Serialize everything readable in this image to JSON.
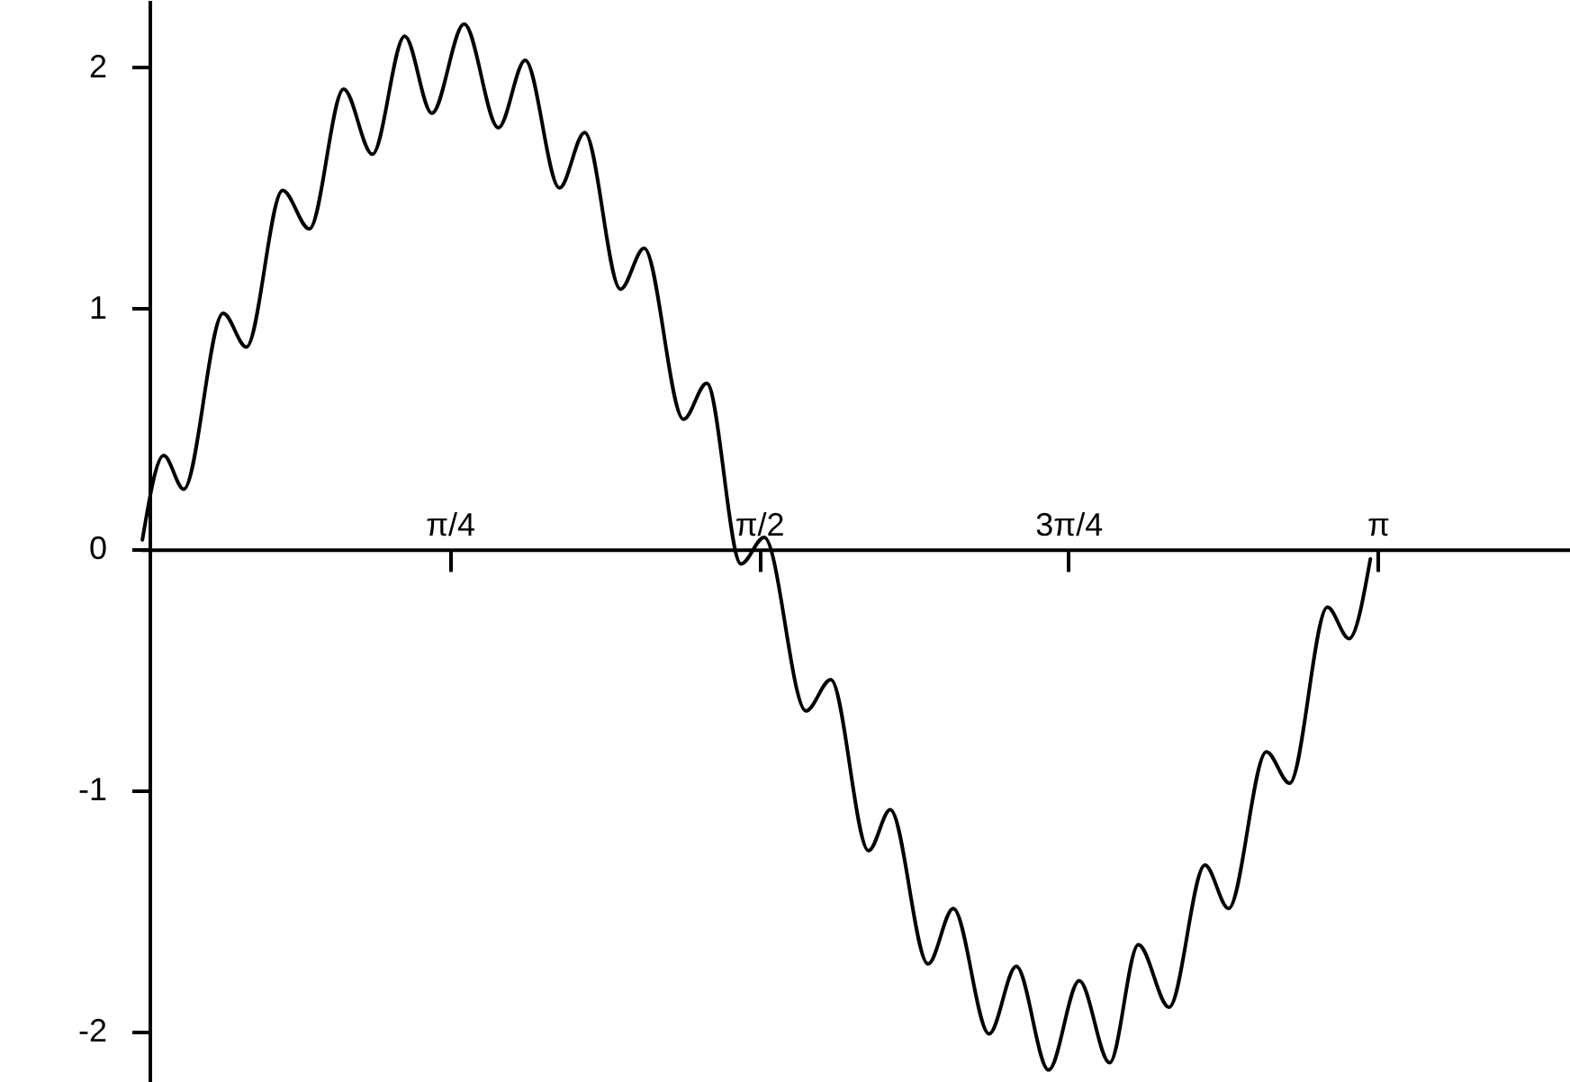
{
  "chart_data": {
    "type": "line",
    "xlim": [
      0,
      3.63
    ],
    "ylim": [
      -2.21,
      2.28
    ],
    "xticks": [
      {
        "value": 0.7854,
        "label": "π/4"
      },
      {
        "value": 1.5708,
        "label": "π/2"
      },
      {
        "value": 2.3562,
        "label": "3π/4"
      },
      {
        "value": 3.1416,
        "label": "π"
      }
    ],
    "yticks": [
      -2,
      -1,
      0,
      1,
      2
    ],
    "grid": false,
    "marker": "none",
    "line_style": "solid",
    "series": [
      {
        "color": "#000000",
        "x": [
          0.005,
          0.059,
          0.11,
          0.21,
          0.269,
          0.361,
          0.429,
          0.516,
          0.589,
          0.671,
          0.74,
          0.822,
          0.909,
          0.977,
          1.064,
          1.128,
          1.219,
          1.279,
          1.379,
          1.438,
          1.525,
          1.584,
          1.69,
          1.753,
          1.849,
          1.904,
          2.0,
          2.064,
          2.155,
          2.224,
          2.306,
          2.384,
          2.461,
          2.534,
          2.612,
          2.703,
          2.763,
          2.859,
          2.918,
          3.014,
          3.069,
          3.123
        ],
        "values": [
          0.04,
          0.39,
          0.25,
          0.98,
          0.84,
          1.49,
          1.33,
          1.91,
          1.64,
          2.13,
          1.81,
          2.18,
          1.75,
          2.03,
          1.5,
          1.73,
          1.08,
          1.25,
          0.54,
          0.69,
          -0.06,
          0.05,
          -0.67,
          -0.54,
          -1.25,
          -1.08,
          -1.72,
          -1.49,
          -2.01,
          -1.73,
          -2.16,
          -1.79,
          -2.13,
          -1.64,
          -1.9,
          -1.31,
          -1.49,
          -0.84,
          -0.97,
          -0.24,
          -0.37,
          -0.04
        ]
      }
    ]
  }
}
